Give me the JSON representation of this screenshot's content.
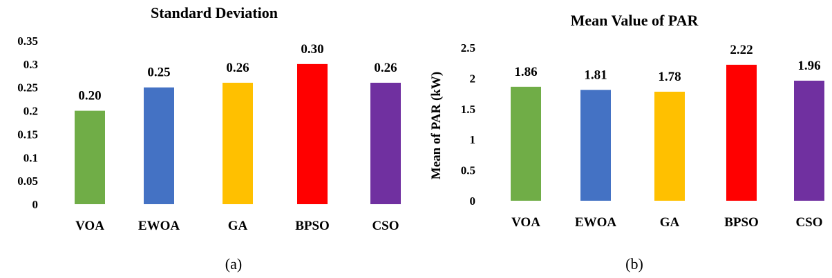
{
  "chart_data": [
    {
      "type": "bar",
      "title": "Standard Deviation",
      "ylabel": "",
      "caption": "(a)",
      "categories": [
        "VOA",
        "EWOA",
        "GA",
        "BPSO",
        "CSO"
      ],
      "values": [
        0.2,
        0.25,
        0.26,
        0.3,
        0.26
      ],
      "data_labels": [
        "0.20",
        "0.25",
        "0.26",
        "0.30",
        "0.26"
      ],
      "y_ticks": [
        "0",
        "0.05",
        "0.1",
        "0.15",
        "0.2",
        "0.25",
        "0.3",
        "0.35"
      ],
      "ylim": [
        0,
        0.35
      ],
      "colors": [
        "#70ad47",
        "#4472c4",
        "#ffc000",
        "#ff0000",
        "#7030a0"
      ]
    },
    {
      "type": "bar",
      "title": "Mean Value of PAR",
      "ylabel": "Mean of PAR (kW)",
      "caption": "(b)",
      "categories": [
        "VOA",
        "EWOA",
        "GA",
        "BPSO",
        "CSO"
      ],
      "values": [
        1.86,
        1.81,
        1.78,
        2.22,
        1.96
      ],
      "data_labels": [
        "1.86",
        "1.81",
        "1.78",
        "2.22",
        "1.96"
      ],
      "y_ticks": [
        "0",
        "0.5",
        "1",
        "1.5",
        "2",
        "2.5"
      ],
      "ylim": [
        0,
        2.5
      ],
      "colors": [
        "#70ad47",
        "#4472c4",
        "#ffc000",
        "#ff0000",
        "#7030a0"
      ]
    }
  ]
}
